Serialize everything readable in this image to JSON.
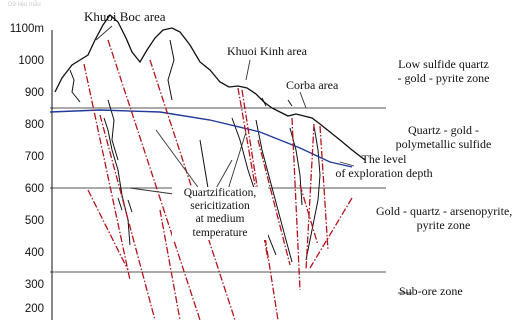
{
  "watermark": "Dữ liệu mẫu",
  "axis": {
    "ticks": [
      "1100m",
      "1000",
      "900",
      "800",
      "700",
      "600",
      "500",
      "400",
      "300",
      "200"
    ]
  },
  "areas": {
    "khuoi_boc": "Khuoi Boc area",
    "khuoi_kinh": "Khuoi Kinh area",
    "corba": "Corba area"
  },
  "zones": {
    "upper": [
      "Low sulfide quartz",
      "- gold - pyrite zone"
    ],
    "middle": [
      "Quartz - gold -",
      "polymetallic sulfide"
    ],
    "lower": [
      "Gold - quartz - arsenopyrite,",
      "pyrite zone"
    ],
    "sub_ore": "Sub-ore zone"
  },
  "exploration": [
    "The level",
    "of exploration depth"
  ],
  "alteration": [
    "Quartzification,",
    "sericitization",
    "at medium",
    "temperature"
  ],
  "colors": {
    "vein": "#b3141e",
    "exploration_line": "#1f3a9a",
    "boundary": "#555555",
    "outline": "#111111"
  }
}
